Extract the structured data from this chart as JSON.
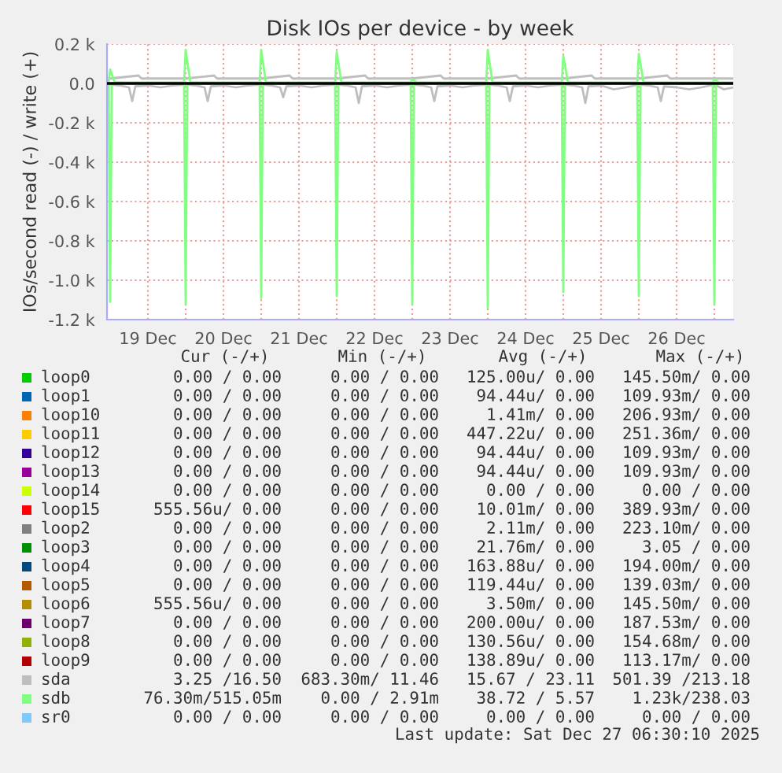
{
  "chart_data": {
    "type": "line",
    "title": "Disk IOs per device - by week",
    "ylabel": "IOs/second read (-) / write (+)",
    "xlim": [
      "2025-12-18T23:00",
      "2025-12-27T06:00"
    ],
    "xticks": [
      {
        "value": "2025-12-19T12:00",
        "label": "19 Dec"
      },
      {
        "value": "2025-12-20T00:00",
        "label": null
      },
      {
        "value": "2025-12-20T12:00",
        "label": "20 Dec"
      },
      {
        "value": "2025-12-21T00:00",
        "label": null
      },
      {
        "value": "2025-12-21T12:00",
        "label": "21 Dec"
      },
      {
        "value": "2025-12-22T00:00",
        "label": null
      },
      {
        "value": "2025-12-22T12:00",
        "label": "22 Dec"
      },
      {
        "value": "2025-12-23T00:00",
        "label": null
      },
      {
        "value": "2025-12-23T12:00",
        "label": "23 Dec"
      },
      {
        "value": "2025-12-24T00:00",
        "label": null
      },
      {
        "value": "2025-12-24T12:00",
        "label": "24 Dec"
      },
      {
        "value": "2025-12-25T00:00",
        "label": null
      },
      {
        "value": "2025-12-25T12:00",
        "label": "25 Dec"
      },
      {
        "value": "2025-12-26T00:00",
        "label": null
      },
      {
        "value": "2025-12-26T12:00",
        "label": "26 Dec"
      },
      {
        "value": "2025-12-27T00:00",
        "label": null
      }
    ],
    "ylim": [
      -1200,
      200
    ],
    "yticks": [
      {
        "value": -1200,
        "label": "-1.2 k"
      },
      {
        "value": -1000,
        "label": "-1.0 k"
      },
      {
        "value": -800,
        "label": "-0.8 k"
      },
      {
        "value": -600,
        "label": "-0.6 k"
      },
      {
        "value": -400,
        "label": "-0.4 k"
      },
      {
        "value": -200,
        "label": "-0.2 k"
      },
      {
        "value": 0,
        "label": "0.0"
      },
      {
        "value": 200,
        "label": "0.2 k"
      }
    ],
    "grid": true,
    "legend": "bottom",
    "line_style": "solid",
    "ref_lines": [
      {
        "axis": "y",
        "value": 0,
        "color": "#000000"
      }
    ],
    "series": [
      {
        "name": "loop0",
        "color": "#00cc00"
      },
      {
        "name": "loop1",
        "color": "#0066b3"
      },
      {
        "name": "loop10",
        "color": "#ff8000"
      },
      {
        "name": "loop11",
        "color": "#ffcc00"
      },
      {
        "name": "loop12",
        "color": "#330099"
      },
      {
        "name": "loop13",
        "color": "#990099"
      },
      {
        "name": "loop14",
        "color": "#ccff00"
      },
      {
        "name": "loop15",
        "color": "#ff0000"
      },
      {
        "name": "loop2",
        "color": "#808080"
      },
      {
        "name": "loop3",
        "color": "#008f00"
      },
      {
        "name": "loop4",
        "color": "#00487d"
      },
      {
        "name": "loop5",
        "color": "#b35a00"
      },
      {
        "name": "loop6",
        "color": "#b38f00"
      },
      {
        "name": "loop7",
        "color": "#6b006b"
      },
      {
        "name": "loop8",
        "color": "#8fb300"
      },
      {
        "name": "loop9",
        "color": "#b30000"
      },
      {
        "name": "sda",
        "color": "#bebebe",
        "x": [
          "2025-12-18T23:00",
          "2025-12-19T00:00",
          "2025-12-19T03:00",
          "2025-12-19T06:00",
          "2025-12-19T07:00",
          "2025-12-19T08:00",
          "2025-12-19T12:00",
          "2025-12-19T16:00",
          "2025-12-19T20:00",
          "2025-12-20T00:00",
          "2025-12-20T03:00",
          "2025-12-20T06:00",
          "2025-12-20T07:00",
          "2025-12-20T08:00",
          "2025-12-20T12:00",
          "2025-12-20T16:00",
          "2025-12-20T20:00",
          "2025-12-21T00:00",
          "2025-12-21T03:00",
          "2025-12-21T06:00",
          "2025-12-21T07:00",
          "2025-12-21T08:00",
          "2025-12-21T12:00",
          "2025-12-21T16:00",
          "2025-12-21T20:00",
          "2025-12-22T00:00",
          "2025-12-22T03:00",
          "2025-12-22T06:00",
          "2025-12-22T07:00",
          "2025-12-22T08:00",
          "2025-12-22T12:00",
          "2025-12-22T16:00",
          "2025-12-22T20:00",
          "2025-12-23T00:00",
          "2025-12-23T03:00",
          "2025-12-23T06:00",
          "2025-12-23T07:00",
          "2025-12-23T08:00",
          "2025-12-23T12:00",
          "2025-12-23T16:00",
          "2025-12-23T20:00",
          "2025-12-24T00:00",
          "2025-12-24T03:00",
          "2025-12-24T06:00",
          "2025-12-24T07:00",
          "2025-12-24T08:00",
          "2025-12-24T12:00",
          "2025-12-24T16:00",
          "2025-12-24T20:00",
          "2025-12-25T00:00",
          "2025-12-25T03:00",
          "2025-12-25T06:00",
          "2025-12-25T07:00",
          "2025-12-25T08:00",
          "2025-12-25T12:00",
          "2025-12-25T16:00",
          "2025-12-25T20:00",
          "2025-12-26T00:00",
          "2025-12-26T03:00",
          "2025-12-26T06:00",
          "2025-12-26T07:00",
          "2025-12-26T08:00",
          "2025-12-26T12:00",
          "2025-12-26T16:00",
          "2025-12-26T20:00",
          "2025-12-27T00:00",
          "2025-12-27T03:00",
          "2025-12-27T06:00"
        ],
        "values": [
          -5,
          -5,
          -10,
          -20,
          -90,
          -15,
          -10,
          -20,
          -10,
          -5,
          -10,
          -20,
          -90,
          -15,
          -10,
          -20,
          -10,
          -5,
          -10,
          -20,
          -70,
          -15,
          -10,
          -20,
          -10,
          -5,
          -10,
          -20,
          -100,
          -15,
          -10,
          -20,
          -10,
          -5,
          -10,
          -20,
          -90,
          -15,
          -10,
          -20,
          -10,
          -5,
          -10,
          -20,
          -90,
          -15,
          -10,
          -20,
          -10,
          -5,
          -10,
          -20,
          -100,
          -15,
          -10,
          -30,
          -20,
          -5,
          -10,
          -20,
          -90,
          -15,
          -20,
          -30,
          -20,
          -5,
          -30,
          -20
        ]
      },
      {
        "color": "#bebebe",
        "x": [
          "2025-12-18T23:00",
          "2025-12-19T00:00",
          "2025-12-19T09:00",
          "2025-12-19T10:00",
          "2025-12-20T00:00",
          "2025-12-20T09:00",
          "2025-12-20T10:00",
          "2025-12-21T00:00",
          "2025-12-21T09:00",
          "2025-12-21T10:00",
          "2025-12-22T00:00",
          "2025-12-22T09:00",
          "2025-12-22T10:00",
          "2025-12-23T00:00",
          "2025-12-23T09:00",
          "2025-12-23T10:00",
          "2025-12-24T00:00",
          "2025-12-24T09:00",
          "2025-12-24T10:00",
          "2025-12-25T00:00",
          "2025-12-25T09:00",
          "2025-12-25T10:00",
          "2025-12-26T00:00",
          "2025-12-26T09:00",
          "2025-12-26T10:00",
          "2025-12-27T06:00"
        ],
        "values": [
          25,
          25,
          40,
          25,
          25,
          40,
          25,
          25,
          40,
          25,
          25,
          40,
          25,
          25,
          40,
          25,
          25,
          40,
          25,
          25,
          40,
          25,
          25,
          40,
          25,
          25
        ]
      },
      {
        "name": "sdb",
        "color": "#80ff80",
        "x": [
          "2025-12-18T23:00",
          "2025-12-18T23:30",
          "2025-12-19T00:00",
          "2025-12-19T00:30",
          "2025-12-19T23:30",
          "2025-12-20T00:00",
          "2025-12-20T00:30",
          "2025-12-20T23:30",
          "2025-12-21T00:00",
          "2025-12-21T00:30",
          "2025-12-21T23:30",
          "2025-12-22T00:00",
          "2025-12-22T00:30",
          "2025-12-22T23:30",
          "2025-12-23T00:00",
          "2025-12-23T00:30",
          "2025-12-23T23:30",
          "2025-12-24T00:00",
          "2025-12-24T00:30",
          "2025-12-24T23:30",
          "2025-12-25T00:00",
          "2025-12-25T00:30",
          "2025-12-25T23:30",
          "2025-12-26T00:00",
          "2025-12-26T00:30",
          "2025-12-26T23:30",
          "2025-12-27T00:00",
          "2025-12-27T00:30",
          "2025-12-27T06:00"
        ],
        "values": [
          0,
          0,
          -1110,
          0,
          0,
          -1120,
          0,
          0,
          -1090,
          0,
          0,
          -1080,
          0,
          0,
          -1120,
          0,
          0,
          -1140,
          0,
          0,
          -1060,
          0,
          0,
          -1080,
          0,
          0,
          -1120,
          0,
          0
        ]
      },
      {
        "color": "#80ff80",
        "x": [
          "2025-12-18T23:00",
          "2025-12-18T23:30",
          "2025-12-19T00:00",
          "2025-12-19T01:30",
          "2025-12-19T23:30",
          "2025-12-20T00:00",
          "2025-12-20T01:30",
          "2025-12-20T23:30",
          "2025-12-21T00:00",
          "2025-12-21T01:30",
          "2025-12-21T23:30",
          "2025-12-22T00:00",
          "2025-12-22T01:30",
          "2025-12-22T23:30",
          "2025-12-23T00:00",
          "2025-12-23T01:30",
          "2025-12-23T23:30",
          "2025-12-24T00:00",
          "2025-12-24T01:30",
          "2025-12-24T23:30",
          "2025-12-25T00:00",
          "2025-12-25T01:30",
          "2025-12-25T23:30",
          "2025-12-26T00:00",
          "2025-12-26T01:30",
          "2025-12-26T23:30",
          "2025-12-27T00:00",
          "2025-12-27T01:30",
          "2025-12-27T06:00"
        ],
        "values": [
          5,
          5,
          70,
          5,
          5,
          170,
          5,
          5,
          170,
          5,
          5,
          160,
          5,
          5,
          20,
          5,
          5,
          170,
          5,
          5,
          140,
          5,
          5,
          150,
          5,
          5,
          20,
          5,
          5
        ]
      },
      {
        "name": "sr0",
        "color": "#80c9ff"
      }
    ],
    "annotations": [
      "Cur (-/+)",
      "Min (-/+)",
      "Avg (-/+)",
      "Max (-/+)",
      "0.00 / 0.00",
      "0.00 / 0.00",
      "125.00u/ 0.00",
      "145.50m/ 0.00",
      "0.00 / 0.00",
      "0.00 / 0.00",
      "94.44u/ 0.00",
      "109.93m/ 0.00",
      "0.00 / 0.00",
      "0.00 / 0.00",
      "1.41m/ 0.00",
      "206.93m/ 0.00",
      "0.00 / 0.00",
      "0.00 / 0.00",
      "447.22u/ 0.00",
      "251.36m/ 0.00",
      "0.00 / 0.00",
      "0.00 / 0.00",
      "94.44u/ 0.00",
      "109.93m/ 0.00",
      "0.00 / 0.00",
      "0.00 / 0.00",
      "94.44u/ 0.00",
      "109.93m/ 0.00",
      "0.00 / 0.00",
      "0.00 / 0.00",
      "0.00 / 0.00",
      "0.00 / 0.00",
      "555.56u/ 0.00",
      "0.00 / 0.00",
      "10.01m/ 0.00",
      "389.93m/ 0.00",
      "0.00 / 0.00",
      "0.00 / 0.00",
      "2.11m/ 0.00",
      "223.10m/ 0.00",
      "0.00 / 0.00",
      "0.00 / 0.00",
      "21.76m/ 0.00",
      "3.05 / 0.00",
      "0.00 / 0.00",
      "0.00 / 0.00",
      "163.88u/ 0.00",
      "194.00m/ 0.00",
      "0.00 / 0.00",
      "0.00 / 0.00",
      "119.44u/ 0.00",
      "139.03m/ 0.00",
      "555.56u/ 0.00",
      "0.00 / 0.00",
      "3.50m/ 0.00",
      "145.50m/ 0.00",
      "0.00 / 0.00",
      "0.00 / 0.00",
      "200.00u/ 0.00",
      "187.53m/ 0.00",
      "0.00 / 0.00",
      "0.00 / 0.00",
      "130.56u/ 0.00",
      "154.68m/ 0.00",
      "0.00 / 0.00",
      "0.00 / 0.00",
      "138.89u/ 0.00",
      "113.17m/ 0.00",
      "3.25 /16.50",
      "683.30m/ 11.46",
      "15.67 / 23.11",
      "501.39 /213.18",
      "76.30m/515.05m",
      "0.00 / 2.91m",
      "38.72 / 5.57",
      "1.23k/238.03",
      "0.00 / 0.00",
      "0.00 / 0.00",
      "0.00 / 0.00",
      "0.00 / 0.00",
      "Last update: Sat Dec 27 06:30:10 2025"
    ]
  }
}
